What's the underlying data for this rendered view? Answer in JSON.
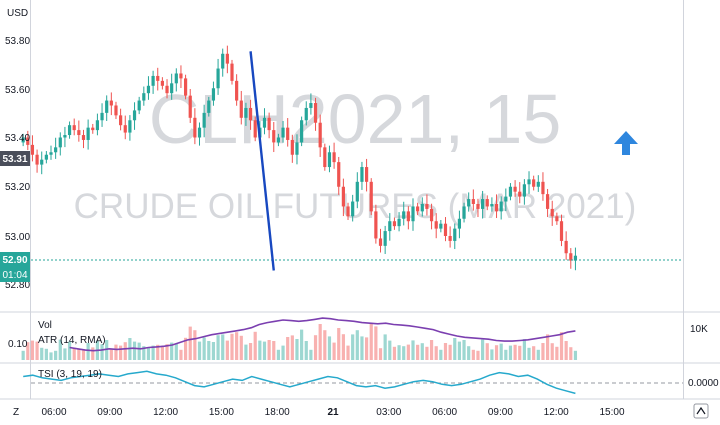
{
  "currency": "USD",
  "watermark": {
    "symbol": "CLH2021, 15",
    "name": "CRUDE OIL FUTURES (MAR 2021)"
  },
  "price_axis": {
    "ticks": [
      "53.80",
      "53.60",
      "53.40",
      "53.20",
      "53.00"
    ],
    "partial_tick": "52.80",
    "current_price_label": "53.31",
    "last_price_label": "52.90",
    "countdown_label": "01:04"
  },
  "time_axis": {
    "ticks": [
      "06:00",
      "09:00",
      "12:00",
      "15:00",
      "18:00",
      "21",
      "03:00",
      "06:00",
      "09:00",
      "12:00",
      "15:00"
    ],
    "left_icon": "Z"
  },
  "volume_pane": {
    "title": "Vol",
    "atr_label": "ATR (14, RMA)",
    "left_value": "0.10",
    "right_tick": "10K"
  },
  "tsi_pane": {
    "title": "TSI (3, 19, 19)",
    "right_tick": "0.0000"
  },
  "colors": {
    "up": "#26a69a",
    "down": "#ef5350",
    "trendline": "#1848c0",
    "atr": "#7b3fb0",
    "tsi": "#26a9cc",
    "arrow": "#2e86de"
  },
  "icons": {
    "arrow": "up-arrow-icon",
    "settings": "settings-icon"
  },
  "chart_data": [
    {
      "type": "candlestick",
      "title": "CLH2021, 15",
      "subtitle": "CRUDE OIL FUTURES (MAR 2021)",
      "currency": "USD",
      "x_range": [
        "04:30",
        "16:45"
      ],
      "x_step_minutes": 15,
      "ylim": [
        52.78,
        53.9
      ],
      "ohlc_close": [
        53.4,
        53.37,
        53.33,
        53.29,
        53.31,
        53.33,
        53.34,
        53.36,
        53.4,
        53.41,
        53.45,
        53.43,
        53.41,
        53.39,
        53.44,
        53.43,
        53.47,
        53.5,
        53.55,
        53.53,
        53.49,
        53.45,
        53.42,
        53.47,
        53.51,
        53.55,
        53.58,
        53.61,
        53.65,
        53.63,
        53.61,
        53.58,
        53.62,
        53.66,
        53.64,
        53.57,
        53.48,
        53.4,
        53.44,
        53.5,
        53.55,
        53.6,
        53.68,
        53.74,
        53.7,
        53.63,
        53.55,
        53.48,
        53.52,
        53.47,
        53.4,
        53.44,
        53.48,
        53.43,
        53.38,
        53.4,
        53.44,
        53.39,
        53.33,
        53.38,
        53.47,
        53.52,
        53.54,
        53.46,
        53.36,
        53.28,
        53.34,
        53.3,
        53.2,
        53.12,
        53.08,
        53.14,
        53.22,
        53.28,
        53.22,
        53.1,
        52.99,
        52.96,
        53.02,
        53.06,
        53.04,
        53.07,
        53.1,
        53.06,
        53.12,
        53.1,
        53.13,
        53.11,
        53.06,
        53.03,
        53.05,
        53.0,
        52.98,
        53.03,
        53.07,
        53.12,
        53.15,
        53.13,
        53.11,
        53.15,
        53.12,
        53.13,
        53.1,
        53.14,
        53.16,
        53.2,
        53.18,
        53.16,
        53.21,
        53.23,
        53.2,
        53.22,
        53.17,
        53.11,
        53.08,
        53.06,
        52.98,
        52.93,
        52.9,
        52.92
      ],
      "ohlc_open_first": 53.38,
      "trendline": {
        "from": {
          "x": "15:15",
          "y": 53.75
        },
        "to": {
          "x": "16:30",
          "y": 52.86
        }
      },
      "horizontal_line": 52.9
    },
    {
      "type": "bar",
      "title": "Vol",
      "colors_follow_candles": true,
      "right_tick": "10K"
    },
    {
      "type": "line",
      "title": "ATR (14, RMA)",
      "left_value": "0.10",
      "values": [
        0.062,
        0.06,
        0.058,
        0.057,
        0.058,
        0.06,
        0.059,
        0.06,
        0.061,
        0.06,
        0.062,
        0.063,
        0.064,
        0.066,
        0.07,
        0.074,
        0.076,
        0.079,
        0.082,
        0.084,
        0.086,
        0.088,
        0.09,
        0.093,
        0.098,
        0.101,
        0.103,
        0.105,
        0.104,
        0.103,
        0.104,
        0.106,
        0.108,
        0.107,
        0.105,
        0.104,
        0.103,
        0.101,
        0.1,
        0.099,
        0.1,
        0.098,
        0.097,
        0.096,
        0.094,
        0.092,
        0.09,
        0.086,
        0.083,
        0.08,
        0.078,
        0.077,
        0.076,
        0.075,
        0.073,
        0.072,
        0.072,
        0.073,
        0.074,
        0.076,
        0.078,
        0.08,
        0.082,
        0.086,
        0.088
      ]
    },
    {
      "type": "line",
      "title": "TSI (3, 19, 19)",
      "right_tick": "0.0000",
      "values": [
        0.05,
        0.06,
        0.04,
        0.03,
        0.02,
        0.04,
        0.05,
        0.06,
        0.07,
        0.06,
        0.05,
        0.07,
        0.08,
        0.09,
        0.07,
        0.06,
        0.04,
        0.01,
        -0.02,
        -0.03,
        -0.01,
        0.01,
        0.03,
        0.02,
        0.05,
        0.03,
        0.01,
        -0.01,
        -0.03,
        -0.01,
        0.01,
        0.03,
        0.05,
        0.04,
        0.01,
        -0.02,
        -0.03,
        -0.02,
        -0.04,
        -0.03,
        -0.01,
        0.01,
        0.02,
        0.01,
        -0.01,
        -0.02,
        -0.01,
        0.01,
        0.03,
        0.06,
        0.08,
        0.07,
        0.05,
        0.06,
        0.03,
        -0.01,
        -0.04,
        -0.06,
        -0.08
      ]
    }
  ]
}
